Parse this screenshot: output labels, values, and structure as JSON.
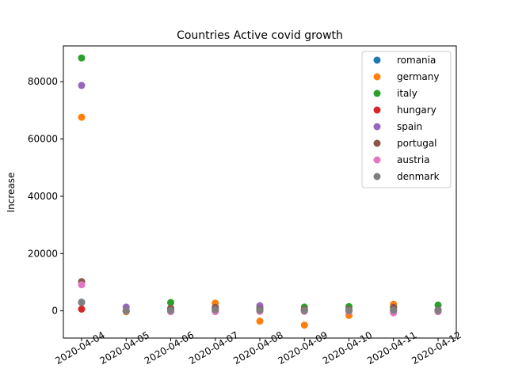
{
  "chart_data": {
    "type": "scatter",
    "title": "Countries Active covid growth",
    "xlabel": "",
    "ylabel": "Increase",
    "x": [
      "2020-04-04",
      "2020-04-05",
      "2020-04-06",
      "2020-04-07",
      "2020-04-08",
      "2020-04-09",
      "2020-04-10",
      "2020-04-11",
      "2020-04-12"
    ],
    "ylim": [
      -9500,
      92500
    ],
    "yticks": [
      0,
      20000,
      40000,
      60000,
      80000
    ],
    "ytick_labels": [
      "0",
      "20000",
      "40000",
      "60000",
      "80000"
    ],
    "grid": false,
    "legend_position": "top-right",
    "series": [
      {
        "name": "romania",
        "color": "#1f77b4",
        "values": [
          3000,
          0,
          200,
          300,
          200,
          200,
          200,
          300,
          200
        ]
      },
      {
        "name": "germany",
        "color": "#ff7f0e",
        "values": [
          67600,
          -300,
          300,
          2700,
          -3600,
          -5000,
          -1600,
          2300,
          -200
        ]
      },
      {
        "name": "italy",
        "color": "#2ca02c",
        "values": [
          88300,
          0,
          2900,
          900,
          1000,
          1300,
          1500,
          1200,
          2000
        ]
      },
      {
        "name": "hungary",
        "color": "#d62728",
        "values": [
          600,
          0,
          0,
          0,
          0,
          0,
          0,
          0,
          0
        ]
      },
      {
        "name": "spain",
        "color": "#9467bd",
        "values": [
          78700,
          1300,
          800,
          1200,
          1800,
          400,
          300,
          200,
          300
        ]
      },
      {
        "name": "portugal",
        "color": "#8c564b",
        "values": [
          10200,
          0,
          900,
          1200,
          500,
          500,
          400,
          1200,
          300
        ]
      },
      {
        "name": "austria",
        "color": "#e377c2",
        "values": [
          9100,
          0,
          -300,
          -300,
          -200,
          -200,
          -200,
          -700,
          -300
        ]
      },
      {
        "name": "denmark",
        "color": "#7f7f7f",
        "values": [
          2900,
          0,
          100,
          400,
          200,
          100,
          100,
          200,
          100
        ]
      }
    ]
  }
}
